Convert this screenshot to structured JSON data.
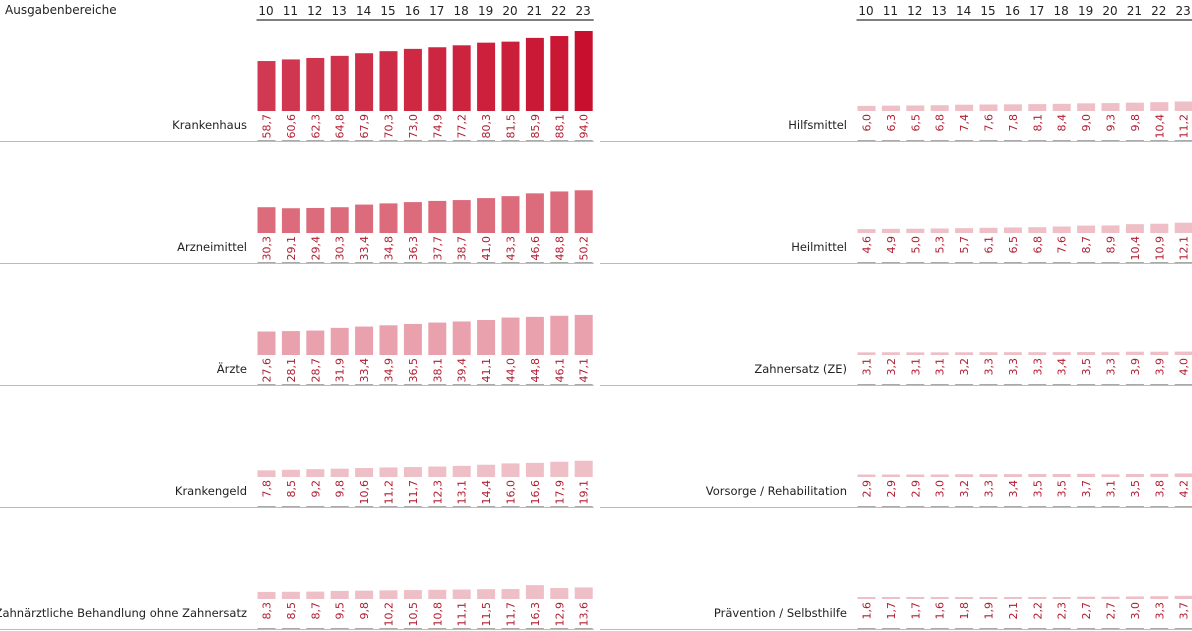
{
  "header": {
    "title": "Ausgabenbereiche"
  },
  "chart_data": {
    "type": "bar",
    "years": [
      "10",
      "11",
      "12",
      "13",
      "14",
      "15",
      "16",
      "17",
      "18",
      "19",
      "20",
      "21",
      "22",
      "23"
    ],
    "value_max": 94.0,
    "colors": {
      "krankenhaus": "#c8102e",
      "medium": "#dc6b7c",
      "light": "#e9a1ad",
      "lighter": "#eebfc6",
      "value_text": "#b01c30"
    },
    "panels": [
      {
        "name": "Krankenhaus",
        "column": "left",
        "row": 0,
        "tone": "strong",
        "values": [
          "58,7",
          "60,6",
          "62,3",
          "64,8",
          "67,9",
          "70,3",
          "73,0",
          "74,9",
          "77,2",
          "80,3",
          "81,5",
          "85,9",
          "88,1",
          "94,0"
        ]
      },
      {
        "name": "Arzneimittel",
        "column": "left",
        "row": 1,
        "tone": "medium",
        "values": [
          "30,3",
          "29,1",
          "29,4",
          "30,3",
          "33,4",
          "34,8",
          "36,3",
          "37,7",
          "38,7",
          "41,0",
          "43,3",
          "46,6",
          "48,8",
          "50,2"
        ]
      },
      {
        "name": "Ärzte",
        "column": "left",
        "row": 2,
        "tone": "light",
        "values": [
          "27,6",
          "28,1",
          "28,7",
          "31,9",
          "33,4",
          "34,9",
          "36,5",
          "38,1",
          "39,4",
          "41,1",
          "44,0",
          "44,8",
          "46,1",
          "47,1"
        ]
      },
      {
        "name": "Krankengeld",
        "column": "left",
        "row": 3,
        "tone": "lighter",
        "values": [
          "7,8",
          "8,5",
          "9,2",
          "9,8",
          "10,6",
          "11,2",
          "11,7",
          "12,3",
          "13,1",
          "14,4",
          "16,0",
          "16,6",
          "17,9",
          "19,1"
        ]
      },
      {
        "name": "Zahnärztliche Behandlung ohne Zahnersatz",
        "column": "left",
        "row": 4,
        "tone": "lighter",
        "values": [
          "8,3",
          "8,5",
          "8,7",
          "9,5",
          "9,8",
          "10,2",
          "10,5",
          "10,8",
          "11,1",
          "11,5",
          "11,7",
          "16,3",
          "12,9",
          "13,6"
        ]
      },
      {
        "name": "Hilfsmittel",
        "column": "right",
        "row": 0,
        "tone": "lighter",
        "values": [
          "6,0",
          "6,3",
          "6,5",
          "6,8",
          "7,4",
          "7,6",
          "7,8",
          "8,1",
          "8,4",
          "9,0",
          "9,3",
          "9,8",
          "10,4",
          "11,2"
        ]
      },
      {
        "name": "Heilmittel",
        "column": "right",
        "row": 1,
        "tone": "lighter",
        "values": [
          "4,6",
          "4,9",
          "5,0",
          "5,3",
          "5,7",
          "6,1",
          "6,5",
          "6,8",
          "7,6",
          "8,7",
          "8,9",
          "10,4",
          "10,9",
          "12,1"
        ]
      },
      {
        "name": "Zahnersatz (ZE)",
        "column": "right",
        "row": 2,
        "tone": "lighter",
        "values": [
          "3,1",
          "3,2",
          "3,1",
          "3,1",
          "3,2",
          "3,3",
          "3,3",
          "3,3",
          "3,4",
          "3,5",
          "3,3",
          "3,9",
          "3,9",
          "4,0"
        ]
      },
      {
        "name": "Vorsorge / Rehabilitation",
        "column": "right",
        "row": 3,
        "tone": "lighter",
        "values": [
          "2,9",
          "2,9",
          "2,9",
          "3,0",
          "3,2",
          "3,3",
          "3,4",
          "3,5",
          "3,5",
          "3,7",
          "3,1",
          "3,5",
          "3,8",
          "4,2"
        ]
      },
      {
        "name": "Prävention / Selbsthilfe",
        "column": "right",
        "row": 4,
        "tone": "lighter",
        "values": [
          "1,6",
          "1,7",
          "1,7",
          "1,6",
          "1,8",
          "1,9",
          "2,1",
          "2,2",
          "2,3",
          "2,7",
          "2,7",
          "3,0",
          "3,3",
          "3,7"
        ]
      }
    ]
  }
}
